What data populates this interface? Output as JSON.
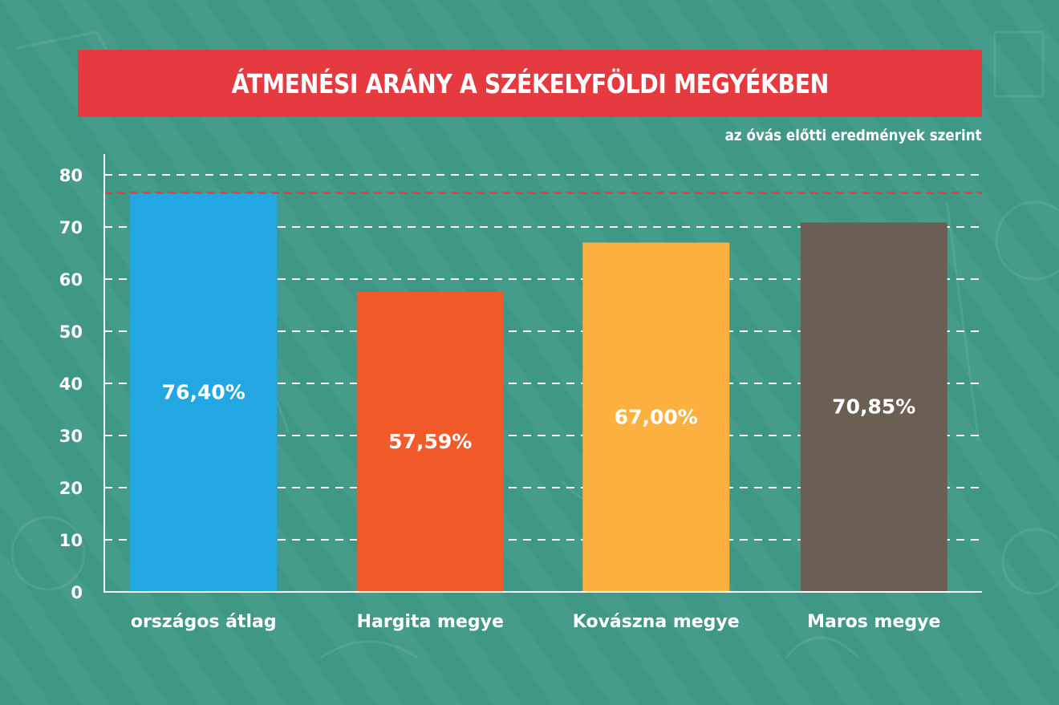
{
  "title": "ÁTMENÉSI ARÁNY A SZÉKELYFÖLDI MEGYÉKBEN",
  "subtitle": "az óvás előtti eredmények szerint",
  "colors": {
    "background": "#3f9886",
    "banner": "#e43a40",
    "grid": "#ffffff",
    "reference_line": "#e43a40"
  },
  "chart_data": {
    "type": "bar",
    "categories": [
      "országos átlag",
      "Hargita megye",
      "Kovászna megye",
      "Maros megye"
    ],
    "values": [
      76.4,
      57.59,
      67.0,
      70.85
    ],
    "value_labels": [
      "76,40%",
      "57,59%",
      "67,00%",
      "70,85%"
    ],
    "bar_colors": [
      "#23a7e2",
      "#f15a29",
      "#fbb040",
      "#6b5f53"
    ],
    "yticks": [
      0,
      10,
      20,
      30,
      40,
      50,
      60,
      70,
      80
    ],
    "ylim": [
      0,
      80
    ],
    "reference_value": 76.4,
    "grid": true,
    "title": "ÁTMENÉSI ARÁNY A SZÉKELYFÖLDI MEGYÉKBEN",
    "xlabel": "",
    "ylabel": ""
  }
}
